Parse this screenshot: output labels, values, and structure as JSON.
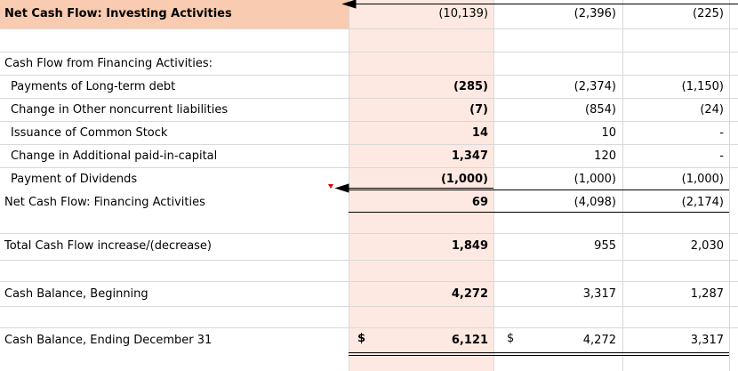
{
  "investing_total": {
    "label": "Net Cash Flow: Investing Activities",
    "values": [
      "(10,139)",
      "(2,396)",
      "(225)"
    ]
  },
  "financing": {
    "heading": "Cash Flow from Financing Activities:",
    "items": [
      {
        "label": "Payments of Long-term debt",
        "values": [
          "(285)",
          "(2,374)",
          "(1,150)"
        ]
      },
      {
        "label": "Change in Other noncurrent liabilities",
        "values": [
          "(7)",
          "(854)",
          "(24)"
        ]
      },
      {
        "label": "Issuance of Common Stock",
        "values": [
          "14",
          "10",
          "-"
        ]
      },
      {
        "label": "Change in Additional paid-in-capital",
        "values": [
          "1,347",
          "120",
          "-"
        ]
      },
      {
        "label": "Payment of Dividends",
        "values": [
          "(1,000)",
          "(1,000)",
          "(1,000)"
        ]
      }
    ],
    "total": {
      "label": "Net Cash Flow: Financing Activities",
      "values": [
        "69",
        "(4,098)",
        "(2,174)"
      ]
    }
  },
  "total_change": {
    "label": "Total Cash Flow increase/(decrease)",
    "values": [
      "1,849",
      "955",
      "2,030"
    ]
  },
  "beginning": {
    "label": "Cash Balance, Beginning",
    "values": [
      "4,272",
      "3,317",
      "1,287"
    ]
  },
  "ending": {
    "label": "Cash Balance, Ending December 31",
    "currency": "$",
    "values": [
      "6,121",
      "4,272",
      "3,317"
    ]
  }
}
